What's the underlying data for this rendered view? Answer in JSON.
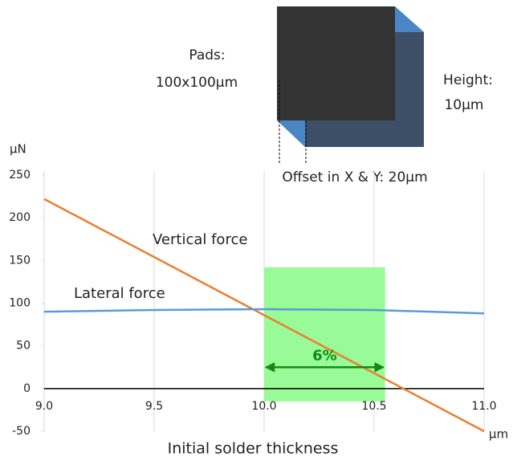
{
  "chart_data": {
    "type": "line",
    "series": [
      {
        "name": "Vertical force",
        "color": "#ed7d31",
        "x": [
          9.0,
          11.0
        ],
        "values": [
          222,
          -50
        ]
      },
      {
        "name": "Lateral force",
        "color": "#5b9bd5",
        "x": [
          9.0,
          9.5,
          10.0,
          10.5,
          11.0
        ],
        "values": [
          90,
          92,
          93,
          92,
          88
        ]
      }
    ],
    "x_label": "Initial solder thickness",
    "x_unit": "μm",
    "y_unit": "μN",
    "xlim": [
      9.0,
      11.0
    ],
    "xticks": [
      {
        "value": 9.0,
        "label": "9.0"
      },
      {
        "value": 9.5,
        "label": "9.5"
      },
      {
        "value": 10.0,
        "label": "10.0"
      },
      {
        "value": 10.5,
        "label": "10.5"
      },
      {
        "value": 11.0,
        "label": "11.0"
      }
    ],
    "ylim": [
      -50,
      250
    ],
    "yticks": [
      -50,
      0,
      50,
      100,
      150,
      200,
      250
    ],
    "grid": true,
    "highlight": {
      "xrange": [
        10.0,
        10.55
      ],
      "yrange": [
        -15,
        142
      ],
      "arrow_y": 25,
      "color": "#98fb98",
      "arrow_color": "#138a13",
      "label": "6%"
    }
  },
  "diagram": {
    "pads_label": "Pads:",
    "pads_size": "100x100μm",
    "height_label": "Height:",
    "height_value": "10μm",
    "offset_label": "Offset in X & Y: 20μm"
  }
}
